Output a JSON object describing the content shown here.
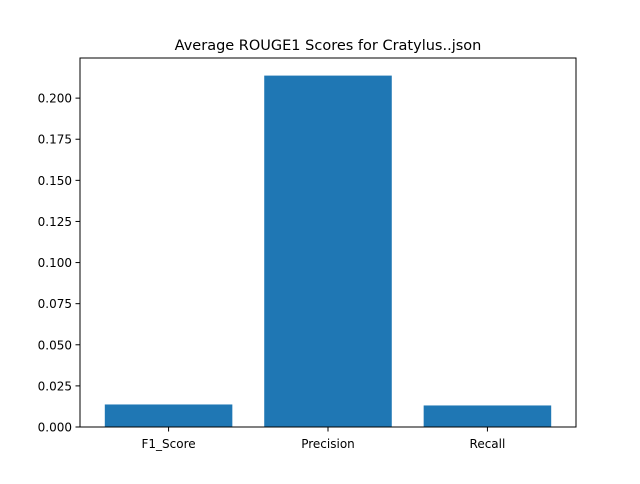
{
  "chart_data": {
    "type": "bar",
    "title": "Average ROUGE1 Scores for Cratylus..json",
    "xlabel": "",
    "ylabel": "",
    "categories": [
      "F1_Score",
      "Precision",
      "Recall"
    ],
    "values": [
      0.0137,
      0.2137,
      0.0131
    ],
    "ylim": [
      0,
      0.2244
    ],
    "yticks": [
      "0.000",
      "0.025",
      "0.050",
      "0.075",
      "0.100",
      "0.125",
      "0.150",
      "0.175",
      "0.200"
    ],
    "ytick_values": [
      0,
      0.025,
      0.05,
      0.075,
      0.1,
      0.125,
      0.15,
      0.175,
      0.2
    ],
    "bar_color": "#1f77b4",
    "grid": false,
    "legend": "none"
  }
}
